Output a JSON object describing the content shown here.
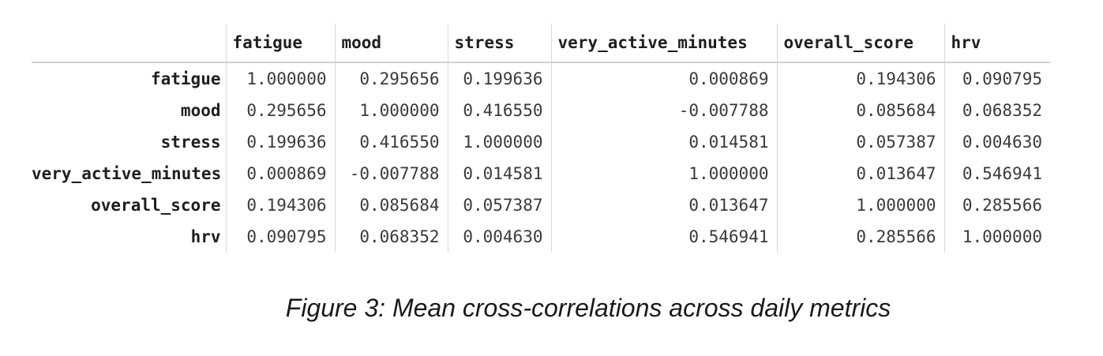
{
  "table": {
    "columns": [
      "fatigue",
      "mood",
      "stress",
      "very_active_minutes",
      "overall_score",
      "hrv"
    ],
    "rows": [
      {
        "label": "fatigue",
        "values": [
          "1.000000",
          "0.295656",
          "0.199636",
          "0.000869",
          "0.194306",
          "0.090795"
        ]
      },
      {
        "label": "mood",
        "values": [
          "0.295656",
          "1.000000",
          "0.416550",
          "-0.007788",
          "0.085684",
          "0.068352"
        ]
      },
      {
        "label": "stress",
        "values": [
          "0.199636",
          "0.416550",
          "1.000000",
          "0.014581",
          "0.057387",
          "0.004630"
        ]
      },
      {
        "label": "very_active_minutes",
        "values": [
          "0.000869",
          "-0.007788",
          "0.014581",
          "1.000000",
          "0.013647",
          "0.546941"
        ]
      },
      {
        "label": "overall_score",
        "values": [
          "0.194306",
          "0.085684",
          "0.057387",
          "0.013647",
          "1.000000",
          "0.285566"
        ]
      },
      {
        "label": "hrv",
        "values": [
          "0.090795",
          "0.068352",
          "0.004630",
          "0.546941",
          "0.285566",
          "1.000000"
        ]
      }
    ]
  },
  "caption": "Figure 3: Mean cross-correlations across daily metrics"
}
